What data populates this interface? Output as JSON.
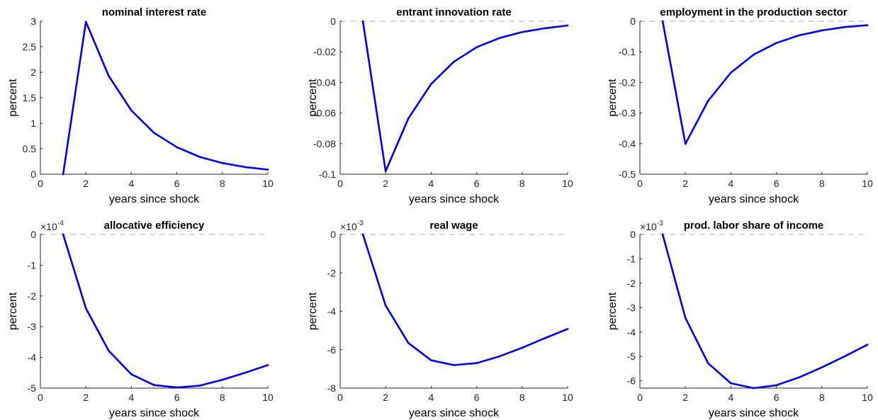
{
  "chart_data": [
    {
      "type": "line",
      "title": "nominal interest rate",
      "xlabel": "years since shock",
      "ylabel": "percent",
      "xlim": [
        0,
        10
      ],
      "ylim": [
        0,
        3
      ],
      "xticks": [
        "0",
        "2",
        "4",
        "6",
        "8",
        "10"
      ],
      "yticks": [
        "0",
        "0.5",
        "1",
        "1.5",
        "2",
        "2.5",
        "3"
      ],
      "multiplier": "",
      "zero_line": false,
      "color": "#0000ee",
      "x": [
        1,
        2,
        3,
        4,
        5,
        6,
        7,
        8,
        9,
        10
      ],
      "values": [
        0,
        2.99,
        1.93,
        1.25,
        0.81,
        0.53,
        0.34,
        0.22,
        0.14,
        0.09
      ]
    },
    {
      "type": "line",
      "title": "entrant innovation rate",
      "xlabel": "years since shock",
      "ylabel": "percent",
      "xlim": [
        0,
        10
      ],
      "ylim": [
        -0.1,
        0
      ],
      "xticks": [
        "0",
        "2",
        "4",
        "6",
        "8",
        "10"
      ],
      "yticks": [
        "-0.1",
        "-0.08",
        "-0.06",
        "-0.04",
        "-0.02",
        "0"
      ],
      "multiplier": "",
      "zero_line": true,
      "color": "#0000ee",
      "x": [
        1,
        2,
        3,
        4,
        5,
        6,
        7,
        8,
        9,
        10
      ],
      "values": [
        0,
        -0.098,
        -0.0635,
        -0.041,
        -0.0265,
        -0.017,
        -0.011,
        -0.0071,
        -0.0046,
        -0.0028
      ]
    },
    {
      "type": "line",
      "title": "employment in the production sector",
      "xlabel": "years since shock",
      "ylabel": "percent",
      "xlim": [
        0,
        10
      ],
      "ylim": [
        -0.5,
        0
      ],
      "xticks": [
        "0",
        "2",
        "4",
        "6",
        "8",
        "10"
      ],
      "yticks": [
        "-0.5",
        "-0.4",
        "-0.3",
        "-0.2",
        "-0.1",
        "0"
      ],
      "multiplier": "",
      "zero_line": true,
      "color": "#0000ee",
      "x": [
        1,
        2,
        3,
        4,
        5,
        6,
        7,
        8,
        9,
        10
      ],
      "values": [
        0,
        -0.401,
        -0.26,
        -0.168,
        -0.109,
        -0.071,
        -0.046,
        -0.03,
        -0.019,
        -0.013
      ]
    },
    {
      "type": "line",
      "title": "allocative efficiency",
      "xlabel": "years since shock",
      "ylabel": "percent",
      "xlim": [
        0,
        10
      ],
      "ylim": [
        -5,
        0
      ],
      "xticks": [
        "0",
        "2",
        "4",
        "6",
        "8",
        "10"
      ],
      "yticks": [
        "-5",
        "-4",
        "-3",
        "-2",
        "-1",
        "0"
      ],
      "multiplier": "×10",
      "multiplier_exp": "-4",
      "zero_line": true,
      "color": "#0000ee",
      "x": [
        1,
        2,
        3,
        4,
        5,
        6,
        7,
        8,
        9,
        10
      ],
      "values": [
        0,
        -2.4,
        -3.78,
        -4.55,
        -4.9,
        -4.98,
        -4.92,
        -4.73,
        -4.5,
        -4.25
      ]
    },
    {
      "type": "line",
      "title": "real wage",
      "xlabel": "years since shock",
      "ylabel": "percent",
      "xlim": [
        0,
        10
      ],
      "ylim": [
        -8,
        0
      ],
      "xticks": [
        "0",
        "2",
        "4",
        "6",
        "8",
        "10"
      ],
      "yticks": [
        "-8",
        "-6",
        "-4",
        "-2",
        "0"
      ],
      "multiplier": "×10",
      "multiplier_exp": "-3",
      "zero_line": true,
      "color": "#0000ee",
      "x": [
        1,
        2,
        3,
        4,
        5,
        6,
        7,
        8,
        9,
        10
      ],
      "values": [
        0,
        -3.7,
        -5.65,
        -6.55,
        -6.8,
        -6.7,
        -6.35,
        -5.9,
        -5.4,
        -4.92
      ]
    },
    {
      "type": "line",
      "title": "prod. labor share of income",
      "xlabel": "years since shock",
      "ylabel": "percent",
      "xlim": [
        0,
        10
      ],
      "ylim": [
        -6.3,
        0
      ],
      "xticks": [
        "0",
        "2",
        "4",
        "6",
        "8",
        "10"
      ],
      "yticks": [
        "-6",
        "-5",
        "-4",
        "-3",
        "-2",
        "-1",
        "0"
      ],
      "multiplier": "×10",
      "multiplier_exp": "-3",
      "zero_line": true,
      "color": "#0000ee",
      "x": [
        1,
        2,
        3,
        4,
        5,
        6,
        7,
        8,
        9,
        10
      ],
      "values": [
        0,
        -3.42,
        -5.28,
        -6.1,
        -6.3,
        -6.18,
        -5.86,
        -5.45,
        -5.0,
        -4.52
      ]
    }
  ]
}
